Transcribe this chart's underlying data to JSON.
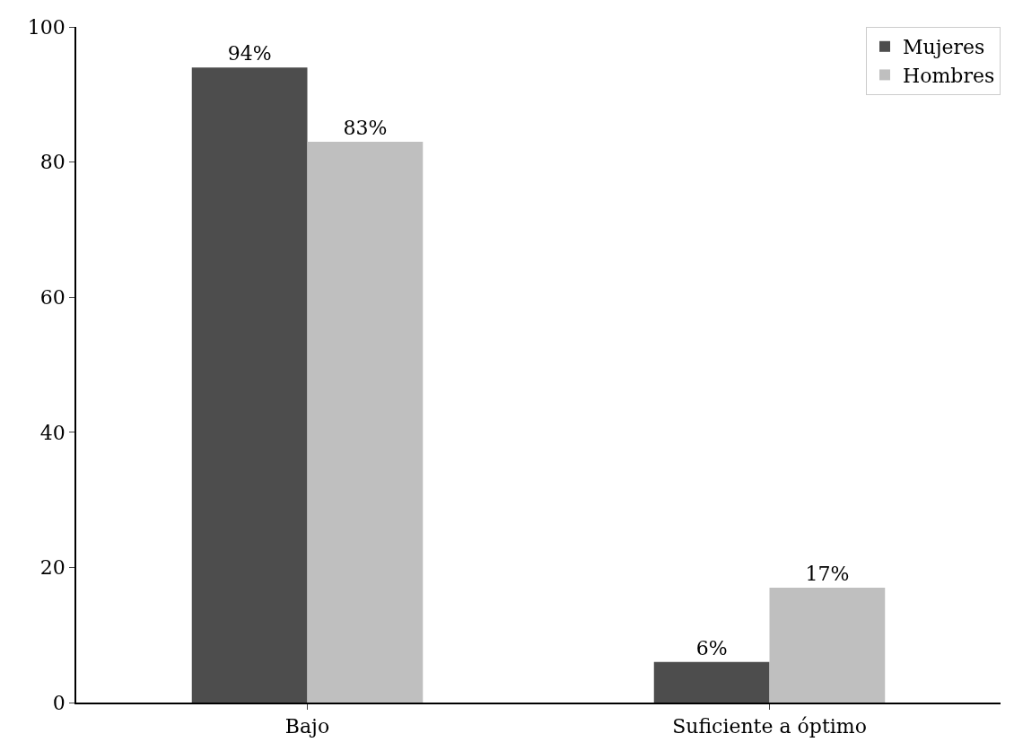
{
  "chart_data": {
    "type": "bar",
    "categories": [
      "Bajo",
      "Suficiente a óptimo"
    ],
    "series": [
      {
        "name": "Mujeres",
        "color": "#4d4d4d",
        "values": [
          94,
          6
        ],
        "value_labels": [
          "94%",
          "6%"
        ]
      },
      {
        "name": "Hombres",
        "color": "#bfbfbf",
        "values": [
          83,
          17
        ],
        "value_labels": [
          "83%",
          "17%"
        ]
      }
    ],
    "ylim": [
      0,
      100
    ],
    "yticks": [
      0,
      20,
      40,
      60,
      80,
      100
    ],
    "grid": false,
    "legend": "top right"
  }
}
